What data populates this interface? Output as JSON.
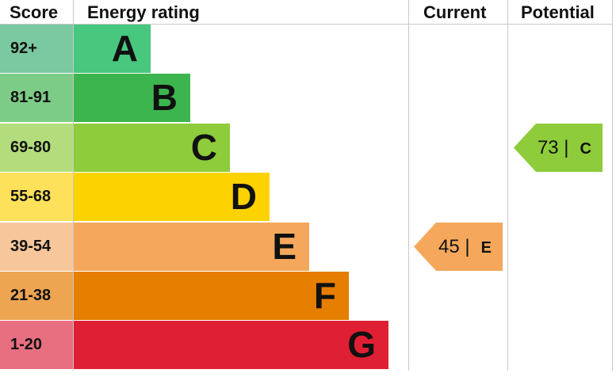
{
  "chart_data": {
    "type": "table",
    "headers": {
      "score": "Score",
      "rating": "Energy rating",
      "current": "Current",
      "potential": "Potential"
    },
    "bands": [
      {
        "letter": "A",
        "range": "92+",
        "color": "#48c77f",
        "score_color": "#7ac9a0"
      },
      {
        "letter": "B",
        "range": "81-91",
        "color": "#3db54f",
        "score_color": "#7ccb86"
      },
      {
        "letter": "C",
        "range": "69-80",
        "color": "#8ecc3b",
        "score_color": "#b3dd7c"
      },
      {
        "letter": "D",
        "range": "55-68",
        "color": "#fcd200",
        "score_color": "#fde15a"
      },
      {
        "letter": "E",
        "range": "39-54",
        "color": "#f5a85c",
        "score_color": "#f7c79b"
      },
      {
        "letter": "F",
        "range": "21-38",
        "color": "#e67e00",
        "score_color": "#eda552"
      },
      {
        "letter": "G",
        "range": "1-20",
        "color": "#df1f33",
        "score_color": "#e86f80"
      }
    ],
    "current": {
      "value": "45 |",
      "letter": "E",
      "band_index": 4
    },
    "potential": {
      "value": "73 |",
      "letter": "C",
      "band_index": 2
    }
  }
}
